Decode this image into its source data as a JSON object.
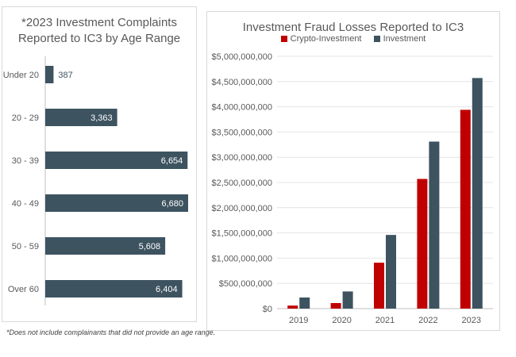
{
  "footnote": "*Does not include complainants that did not provide an age range.",
  "chart_data": [
    {
      "type": "bar",
      "orientation": "horizontal",
      "title_line1": "*2023 Investment Complaints",
      "title_line2": "Reported to IC3 by Age Range",
      "categories": [
        "Under 20",
        "20 - 29",
        "30 - 39",
        "40 - 49",
        "50 - 59",
        "Over 60"
      ],
      "values": [
        387,
        3363,
        6654,
        6680,
        5608,
        6404
      ],
      "value_labels": [
        "387",
        "3,363",
        "6,654",
        "6,680",
        "5,608",
        "6,404"
      ],
      "color": "#3d5360",
      "grid": false
    },
    {
      "type": "bar",
      "title": "Investment Fraud Losses Reported to IC3",
      "categories": [
        "2019",
        "2020",
        "2021",
        "2022",
        "2023"
      ],
      "series": [
        {
          "name": "Crypto-Investment",
          "color": "#c00000",
          "values": [
            60000000,
            110000000,
            910000000,
            2570000000,
            3940000000
          ]
        },
        {
          "name": "Investment",
          "color": "#3d5360",
          "values": [
            220000000,
            340000000,
            1460000000,
            3310000000,
            4570000000
          ]
        }
      ],
      "ylim": [
        0,
        5000000000
      ],
      "yticks": [
        "$0",
        "$500,000,000",
        "$1,000,000,000",
        "$1,500,000,000",
        "$2,000,000,000",
        "$2,500,000,000",
        "$3,000,000,000",
        "$3,500,000,000",
        "$4,000,000,000",
        "$4,500,000,000",
        "$5,000,000,000"
      ],
      "grid": true,
      "legend_position": "top"
    }
  ]
}
